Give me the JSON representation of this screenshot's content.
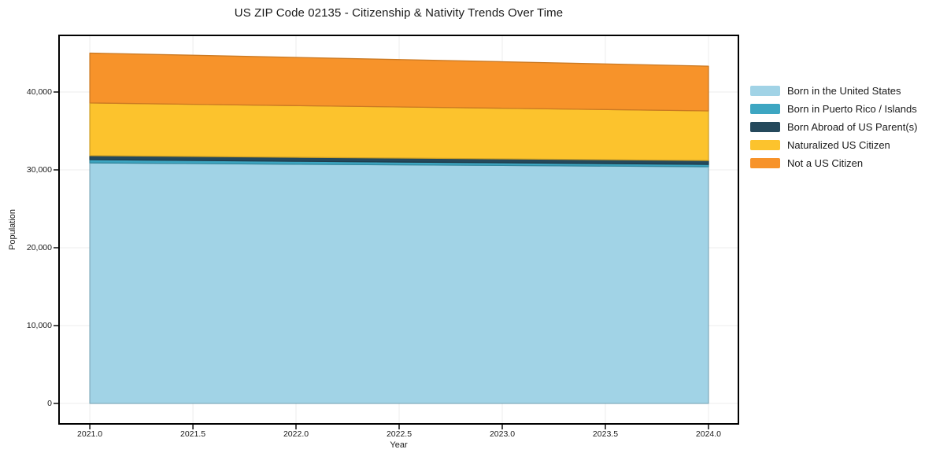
{
  "chart": {
    "title": "US ZIP Code 02135 - Citizenship & Nativity Trends Over Time",
    "xlabel": "Year",
    "ylabel": "Population"
  },
  "chart_data": {
    "type": "area",
    "stacked": true,
    "title": "US ZIP Code 02135 - Citizenship & Nativity Trends Over Time",
    "xlabel": "Year",
    "ylabel": "Population",
    "grid": true,
    "legend_position": "right",
    "x": [
      2021,
      2022,
      2023,
      2024
    ],
    "series": [
      {
        "name": "Born in the United States",
        "color": "#a1d3e6",
        "values": [
          30900,
          30730,
          30570,
          30400
        ]
      },
      {
        "name": "Born in Puerto Rico / Islands",
        "color": "#3da6c2",
        "values": [
          410,
          375,
          335,
          300
        ]
      },
      {
        "name": "Born Abroad of US Parent(s)",
        "color": "#25495c",
        "values": [
          520,
          515,
          510,
          505
        ]
      },
      {
        "name": "Naturalized US Citizen",
        "color": "#fcc32d",
        "values": [
          6770,
          6635,
          6500,
          6370
        ]
      },
      {
        "name": "Not a US Citizen",
        "color": "#f7932a",
        "values": [
          6400,
          6185,
          5970,
          5750
        ]
      }
    ],
    "totals": [
      45000,
      44440,
      43885,
      43325
    ],
    "xlim": [
      2020.847,
      2024.149
    ],
    "ylim": [
      -2727,
      47374
    ],
    "xticks": {
      "values": [
        2021.0,
        2021.5,
        2022.0,
        2022.5,
        2023.0,
        2023.5,
        2024.0
      ],
      "labels": [
        "2021.0",
        "2021.5",
        "2022.0",
        "2022.5",
        "2023.0",
        "2023.5",
        "2024.0"
      ]
    },
    "yticks": {
      "values": [
        0,
        10000,
        20000,
        30000,
        40000
      ],
      "labels": [
        "0",
        "10,000",
        "20,000",
        "30,000",
        "40,000"
      ]
    },
    "colors": {
      "grid": "#ececec",
      "spine": "#000000",
      "tick": "#000000",
      "text": "#1a1a1a"
    }
  }
}
